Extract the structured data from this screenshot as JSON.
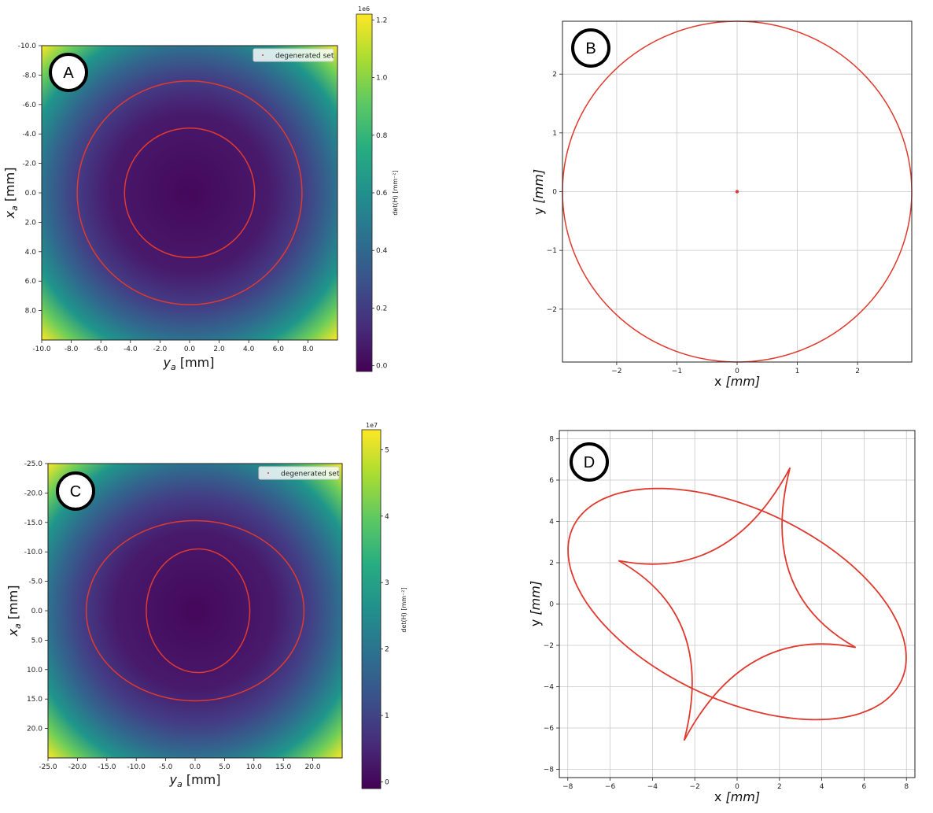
{
  "colors": {
    "curve": "#e03a2f",
    "grid": "#c8c8c8",
    "frame": "#222222"
  },
  "colormap": "viridis",
  "chart_data": [
    {
      "id": "A",
      "badge": "A",
      "type": "heatmap",
      "xlabel": "y",
      "xlabel_sub": "a",
      "xlabel_unit": " [mm]",
      "ylabel": "x",
      "ylabel_sub": "a",
      "ylabel_unit": " [mm]",
      "xlim": [
        -10,
        10
      ],
      "ylim": [
        -10,
        10
      ],
      "y_inverted": true,
      "xticks": [
        "-10.0",
        "-8.0",
        "-6.0",
        "-4.0",
        "-2.0",
        "0.0",
        "2.0",
        "4.0",
        "6.0",
        "8.0"
      ],
      "xtick_values": [
        -10,
        -8,
        -6,
        -4,
        -2,
        0,
        2,
        4,
        6,
        8
      ],
      "yticks": [
        "-10.0",
        "-8.0",
        "-6.0",
        "-4.0",
        "-2.0",
        "0.0",
        "2.0",
        "4.0",
        "6.0",
        "8.0"
      ],
      "ytick_values": [
        -10,
        -8,
        -6,
        -4,
        -2,
        0,
        2,
        4,
        6,
        8
      ],
      "colorbar": {
        "label": "det(H) [mm⁻²]",
        "multiplier": "1e6",
        "min": -0.02,
        "max": 1.22,
        "ticks": [
          "0.0",
          "0.2",
          "0.4",
          "0.6",
          "0.8",
          "1.0",
          "1.2"
        ],
        "tick_values": [
          0,
          0.2,
          0.4,
          0.6,
          0.8,
          1.0,
          1.2
        ]
      },
      "legend": {
        "label": "degenerated set",
        "position": "top-right"
      },
      "curves": [
        {
          "shape": "ellipse",
          "cx": 0,
          "cy": 0,
          "rx": 7.6,
          "ry": 7.6
        },
        {
          "shape": "ellipse",
          "cx": 0,
          "cy": 0,
          "rx": 4.4,
          "ry": 4.4
        }
      ]
    },
    {
      "id": "B",
      "badge": "B",
      "type": "line",
      "xlabel": "x",
      "xlabel_unit": " [mm]",
      "ylabel": "y",
      "ylabel_unit": " [mm]",
      "xlim": [
        -2.9,
        2.9
      ],
      "ylim": [
        -2.9,
        2.9
      ],
      "grid": true,
      "xticks": [
        "−2",
        "−1",
        "0",
        "1",
        "2"
      ],
      "xtick_values": [
        -2,
        -1,
        0,
        1,
        2
      ],
      "yticks": [
        "−2",
        "−1",
        "0",
        "1",
        "2"
      ],
      "ytick_values": [
        -2,
        -1,
        0,
        1,
        2
      ],
      "series": [
        {
          "shape": "circle",
          "cx": 0,
          "cy": 0,
          "r": 2.9
        },
        {
          "shape": "point",
          "x": 0,
          "y": 0
        }
      ]
    },
    {
      "id": "C",
      "badge": "C",
      "type": "heatmap",
      "xlabel": "y",
      "xlabel_sub": "a",
      "xlabel_unit": " [mm]",
      "ylabel": "x",
      "ylabel_sub": "a",
      "ylabel_unit": " [mm]",
      "xlim": [
        -25,
        25
      ],
      "ylim": [
        -25,
        25
      ],
      "y_inverted": true,
      "xticks": [
        "-25.0",
        "-20.0",
        "-15.0",
        "-10.0",
        "-5.0",
        "0.0",
        "5.0",
        "10.0",
        "15.0",
        "20.0"
      ],
      "xtick_values": [
        -25,
        -20,
        -15,
        -10,
        -5,
        0,
        5,
        10,
        15,
        20
      ],
      "yticks": [
        "-25.0",
        "-20.0",
        "-15.0",
        "-10.0",
        "-5.0",
        "0.0",
        "5.0",
        "10.0",
        "15.0",
        "20.0"
      ],
      "ytick_values": [
        -25,
        -20,
        -15,
        -10,
        -5,
        0,
        5,
        10,
        15,
        20
      ],
      "colorbar": {
        "label": "det(H) [mm⁻²]",
        "multiplier": "1e7",
        "min": -0.1,
        "max": 5.3,
        "ticks": [
          "0",
          "1",
          "2",
          "3",
          "4",
          "5"
        ],
        "tick_values": [
          0,
          1,
          2,
          3,
          4,
          5
        ]
      },
      "legend": {
        "label": "degenerated set",
        "position": "top-right"
      },
      "curves": [
        {
          "shape": "ellipse",
          "cx": 0,
          "cy": 0,
          "rx": 18.5,
          "ry": 15.3
        },
        {
          "shape": "ellipse",
          "cx": 0.5,
          "cy": 0,
          "rx": 8.8,
          "ry": 10.5
        }
      ]
    },
    {
      "id": "D",
      "badge": "D",
      "type": "line",
      "xlabel": "x",
      "xlabel_unit": " [mm]",
      "ylabel": "y",
      "ylabel_unit": " [mm]",
      "xlim": [
        -8.4,
        8.4
      ],
      "ylim": [
        -8.4,
        8.4
      ],
      "grid": true,
      "xticks": [
        "−8",
        "−6",
        "−4",
        "−2",
        "0",
        "2",
        "4",
        "6",
        "8"
      ],
      "xtick_values": [
        -8,
        -6,
        -4,
        -2,
        0,
        2,
        4,
        6,
        8
      ],
      "yticks": [
        "−8",
        "−6",
        "−4",
        "−2",
        "0",
        "2",
        "4",
        "6",
        "8"
      ],
      "ytick_values": [
        -8,
        -6,
        -4,
        -2,
        0,
        2,
        4,
        6,
        8
      ],
      "series": [
        {
          "shape": "ellipse",
          "cx": 0,
          "cy": 0,
          "semi_major": 8.6,
          "semi_minor": 4.6,
          "angle_deg": -26
        },
        {
          "shape": "astroid",
          "vertices": [
            [
              2.5,
              6.6
            ],
            [
              -5.6,
              2.1
            ],
            [
              -2.5,
              -6.6
            ],
            [
              5.6,
              -2.1
            ]
          ]
        }
      ]
    }
  ]
}
